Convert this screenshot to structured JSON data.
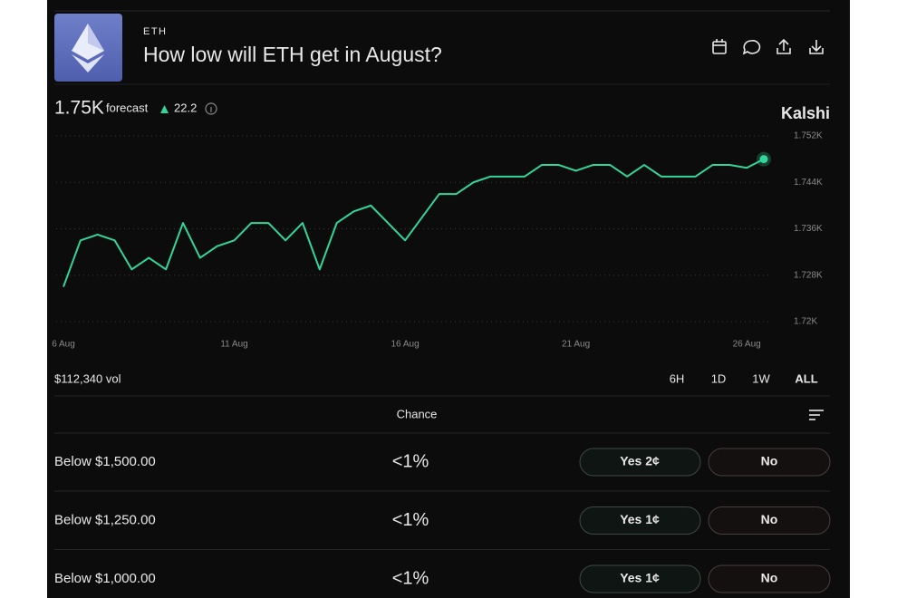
{
  "header": {
    "ticker": "ETH",
    "title": "How low will ETH get in August?"
  },
  "forecast": {
    "value": "1.75K",
    "label": "forecast",
    "change": "22.2"
  },
  "brand": "Kalshi",
  "chart_data": {
    "type": "line",
    "categories": [
      "6 Aug",
      null,
      null,
      null,
      null,
      null,
      null,
      null,
      null,
      null,
      "11 Aug",
      null,
      null,
      null,
      null,
      null,
      null,
      null,
      null,
      null,
      "16 Aug",
      null,
      null,
      null,
      null,
      null,
      null,
      null,
      null,
      null,
      "21 Aug",
      null,
      null,
      null,
      null,
      null,
      null,
      null,
      null,
      null,
      "26 Aug",
      null
    ],
    "series": [
      {
        "color": "#33d69a",
        "values": [
          1726,
          1734,
          1735,
          1734,
          1729,
          1731,
          1729,
          1737,
          1731,
          1733,
          1734,
          1737,
          1737,
          1734,
          1737,
          1729,
          1737,
          1739,
          1740,
          1737,
          1734,
          1738,
          1742,
          1742,
          1744,
          1745,
          1745,
          1745,
          1747,
          1747,
          1746,
          1747,
          1747,
          1745,
          1747,
          1745,
          1745,
          1745,
          1747,
          1747,
          1746.5,
          1748
        ]
      }
    ],
    "ylim": [
      1720,
      1752
    ],
    "yticks": [
      {
        "value": 1720,
        "label": "1.72K"
      },
      {
        "value": 1728,
        "label": "1.728K"
      },
      {
        "value": 1736,
        "label": "1.736K"
      },
      {
        "value": 1744,
        "label": "1.744K"
      },
      {
        "value": 1752,
        "label": "1.752K"
      }
    ],
    "grid": true
  },
  "volume": "$112,340 vol",
  "ranges": [
    "6H",
    "1D",
    "1W",
    "ALL"
  ],
  "table": {
    "column": "Chance",
    "rows": [
      [
        "Below $1,500.00",
        "<1%",
        "Yes 2¢",
        "No"
      ],
      [
        "Below $1,250.00",
        "<1%",
        "Yes 1¢",
        "No"
      ],
      [
        "Below $1,000.00",
        "<1%",
        "Yes 1¢",
        "No"
      ]
    ]
  }
}
